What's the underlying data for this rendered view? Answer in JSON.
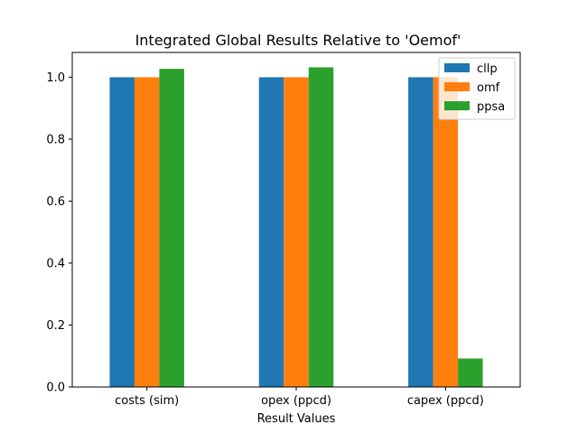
{
  "chart_data": {
    "type": "bar",
    "title": "Integrated Global Results Relative to 'Oemof'",
    "xlabel": "Result Values",
    "ylabel": "",
    "categories": [
      "costs (sim)",
      "opex (ppcd)",
      "capex (ppcd)"
    ],
    "series": [
      {
        "name": "cllp",
        "values": [
          1.0,
          1.0,
          1.0
        ],
        "color": "#1f77b4"
      },
      {
        "name": "omf",
        "values": [
          1.0,
          1.0,
          1.0
        ],
        "color": "#ff7f0e"
      },
      {
        "name": "ppsa",
        "values": [
          1.027,
          1.032,
          0.092
        ],
        "color": "#2ca02c"
      }
    ],
    "ylim": [
      0,
      1.08
    ],
    "yticks": [
      "0.0",
      "0.2",
      "0.4",
      "0.6",
      "0.8",
      "1.0"
    ],
    "grid": false,
    "legend_position": "top-right"
  }
}
